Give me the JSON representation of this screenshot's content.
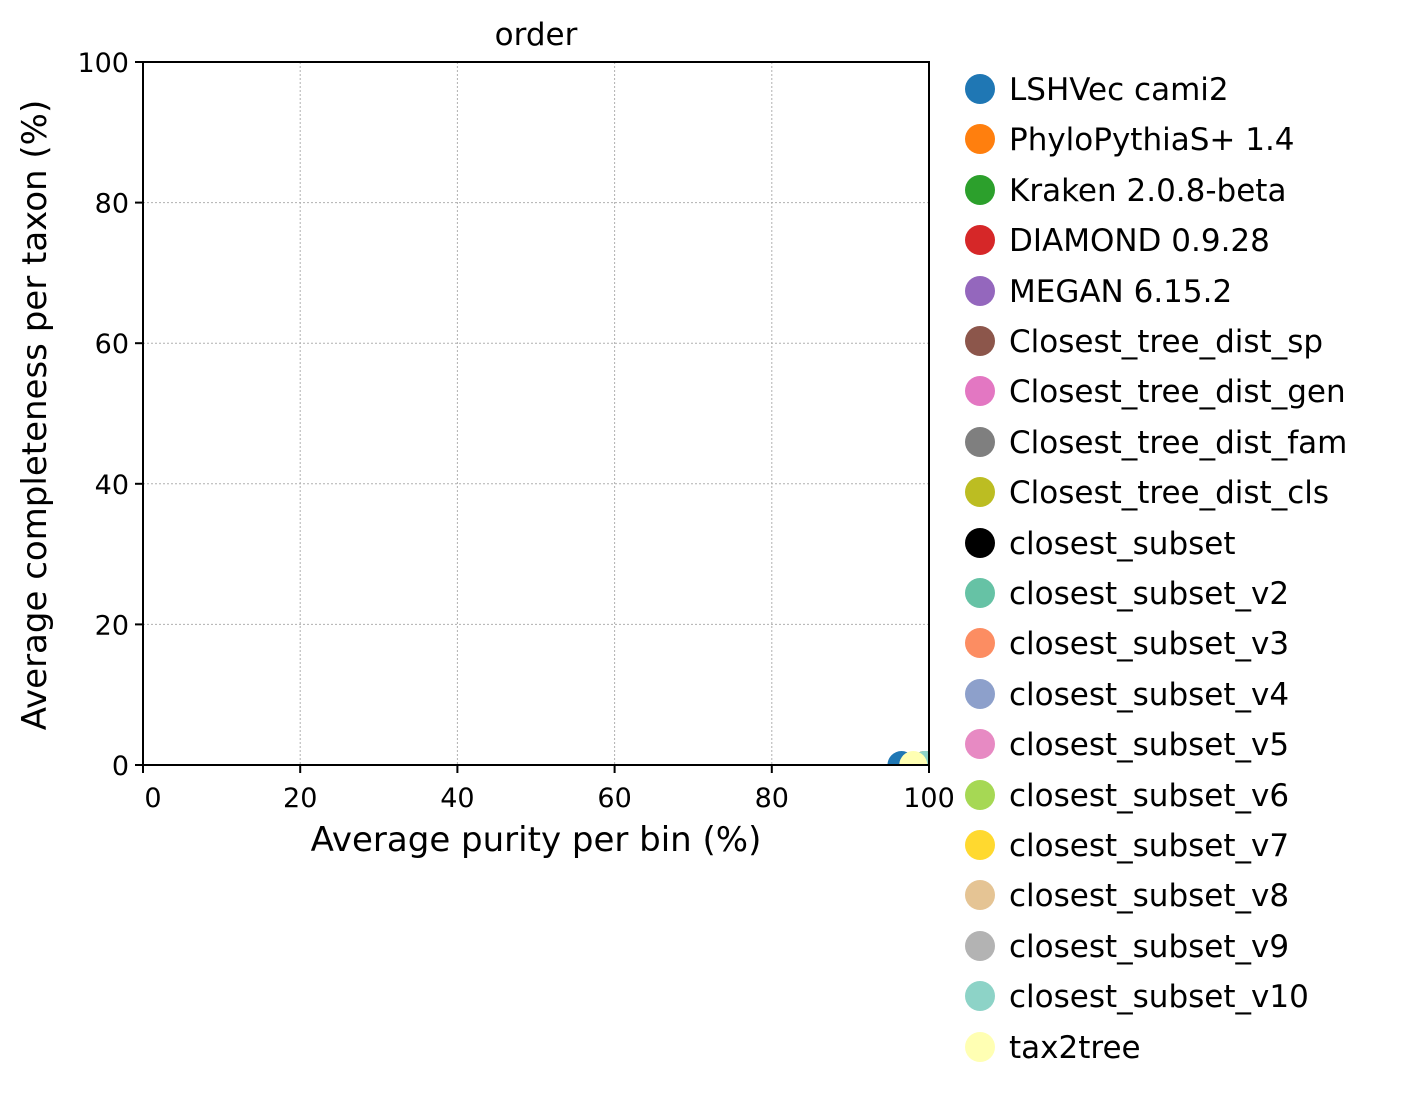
{
  "chart_data": {
    "type": "scatter",
    "title": "order",
    "xlabel": "Average purity per bin (%)",
    "ylabel": "Average completeness per taxon (%)",
    "xlim": [
      0,
      100
    ],
    "ylim": [
      0,
      100
    ],
    "xticks": [
      "0",
      "20",
      "40",
      "60",
      "80",
      "100"
    ],
    "yticks": [
      "0",
      "20",
      "40",
      "60",
      "80",
      "100"
    ],
    "grid": true,
    "legend_position": "outside-right",
    "series": [
      {
        "name": "LSHVec cami2",
        "color": "#1f77b4",
        "x": 96.5,
        "y": 0
      },
      {
        "name": "PhyloPythiaS+ 1.4",
        "color": "#ff7f0e",
        "x": 99.5,
        "y": 0
      },
      {
        "name": "Kraken 2.0.8-beta",
        "color": "#2ca02c",
        "x": 99.5,
        "y": 0
      },
      {
        "name": "DIAMOND 0.9.28",
        "color": "#d62728",
        "x": 99.5,
        "y": 0
      },
      {
        "name": "MEGAN 6.15.2",
        "color": "#9467bd",
        "x": 99.5,
        "y": 0
      },
      {
        "name": "Closest_tree_dist_sp",
        "color": "#8c564b",
        "x": 99.5,
        "y": 0
      },
      {
        "name": "Closest_tree_dist_gen",
        "color": "#e377c2",
        "x": 99.5,
        "y": 0
      },
      {
        "name": "Closest_tree_dist_fam",
        "color": "#7f7f7f",
        "x": 99.5,
        "y": 0
      },
      {
        "name": "Closest_tree_dist_cls",
        "color": "#bcbd22",
        "x": 99.5,
        "y": 0
      },
      {
        "name": "closest_subset",
        "color": "#000000",
        "x": 99.5,
        "y": 0
      },
      {
        "name": "closest_subset_v2",
        "color": "#66c2a5",
        "x": 99.5,
        "y": 0
      },
      {
        "name": "closest_subset_v3",
        "color": "#fc8d62",
        "x": 99.5,
        "y": 0
      },
      {
        "name": "closest_subset_v4",
        "color": "#8da0cb",
        "x": 99.5,
        "y": 0
      },
      {
        "name": "closest_subset_v5",
        "color": "#e78ac3",
        "x": 99.5,
        "y": 0
      },
      {
        "name": "closest_subset_v6",
        "color": "#a6d854",
        "x": 99.5,
        "y": 0
      },
      {
        "name": "closest_subset_v7",
        "color": "#ffd92f",
        "x": 99.5,
        "y": 0
      },
      {
        "name": "closest_subset_v8",
        "color": "#e5c494",
        "x": 99.5,
        "y": 0
      },
      {
        "name": "closest_subset_v9",
        "color": "#b3b3b3",
        "x": 99.5,
        "y": 0
      },
      {
        "name": "closest_subset_v10",
        "color": "#8dd3c7",
        "x": 99.5,
        "y": 0
      },
      {
        "name": "tax2tree",
        "color": "#ffffb3",
        "x": 98,
        "y": 0
      }
    ]
  }
}
